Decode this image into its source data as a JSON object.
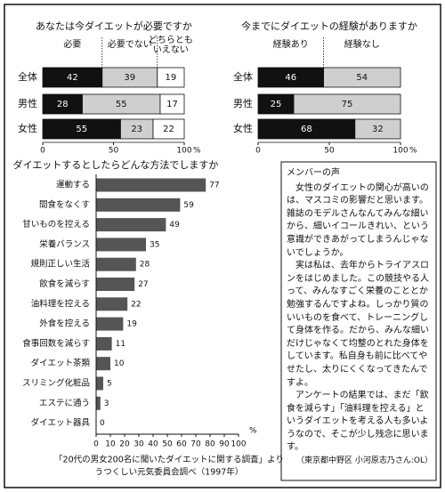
{
  "chart_data": [
    {
      "type": "stacked_bar",
      "title": "あなたは今ダイエットが必要ですか",
      "categories": [
        "全体",
        "男性",
        "女性"
      ],
      "series": [
        {
          "name": "必要",
          "color": "#111111",
          "values": [
            42,
            28,
            55
          ]
        },
        {
          "name": "必要でない",
          "color": "#cfcfcf",
          "values": [
            39,
            55,
            23
          ]
        },
        {
          "name": "どちらとも\nいえない",
          "color": "#ffffff",
          "values": [
            19,
            17,
            22
          ]
        }
      ],
      "xlim": [
        0,
        100
      ],
      "xticks": [
        0,
        50,
        100
      ],
      "x_unit": "%"
    },
    {
      "type": "stacked_bar",
      "title": "今までにダイエットの経験がありますか",
      "categories": [
        "全体",
        "男性",
        "女性"
      ],
      "series": [
        {
          "name": "経験あり",
          "color": "#111111",
          "values": [
            46,
            25,
            68
          ]
        },
        {
          "name": "経験なし",
          "color": "#cfcfcf",
          "values": [
            54,
            75,
            32
          ]
        }
      ],
      "xlim": [
        0,
        100
      ],
      "xticks": [
        0,
        50,
        100
      ],
      "x_unit": "%"
    },
    {
      "type": "bar",
      "title": "ダイエットするとしたらどんな方法でしますか",
      "categories": [
        "運動する",
        "間食をなくす",
        "甘いものを控える",
        "栄養バランス",
        "規則正しい生活",
        "飲食を減らす",
        "油料理を控える",
        "外食を控える",
        "食事回数を減らす",
        "ダイエット茶類",
        "スリミング化粧品",
        "エステに通う",
        "ダイエット器具"
      ],
      "values": [
        77,
        59,
        49,
        35,
        28,
        27,
        22,
        19,
        11,
        10,
        5,
        3,
        0
      ],
      "color": "#555555",
      "xlim": [
        0,
        100
      ],
      "xticks": [
        0,
        10,
        20,
        30,
        40,
        50,
        60,
        70,
        80,
        90,
        100
      ],
      "x_unit": "%"
    }
  ],
  "source": [
    "「20代の男女200名に聞いたダイエットに関する調査」より",
    "うつくしい元気委員会調べ（1997年）"
  ],
  "sidebar": {
    "title": "メンバーの声",
    "paragraphs": [
      "女性のダイエットの関心が高いのは、マスコミの影響だと思います。雑誌のモデルさんなんてみんな細いから、細いイコールきれい、という意識ができあがってしまうんじゃないでしょうか。",
      "実は私は、去年からトライアスロンをはじめました。この競技やる人って、みんなすごく栄養のこととか勉強するんですよね。しっかり質のいいものを食べて、トレーニングして身体を作る。だから、みんな細いだけじゃなくて均整のとれた身体をしています。私自身も前に比べてやせたし、太りにくくなってきたんですよ。",
      "アンケートの結果では、まだ「飲食を減らす」「油料理を控える」というダイエットを考える人も多いようなので、そこが少し残念に思います。"
    ],
    "signature": "（東京都中野区 小河原志乃さん:OL）"
  }
}
